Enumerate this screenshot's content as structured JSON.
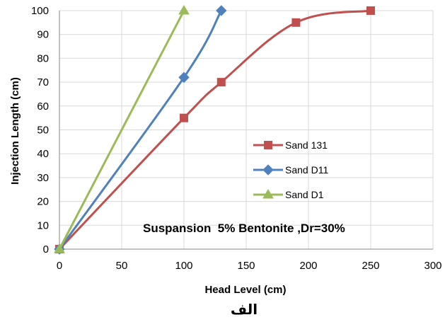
{
  "chart_data": {
    "type": "line",
    "title": "",
    "xlabel": "Head Level (cm)",
    "ylabel": "Injection Length (cm)",
    "xlim": [
      0,
      300
    ],
    "ylim": [
      0,
      100
    ],
    "x_ticks": [
      0,
      50,
      100,
      150,
      200,
      250,
      300
    ],
    "y_ticks": [
      0,
      10,
      20,
      30,
      40,
      50,
      60,
      70,
      80,
      90,
      100
    ],
    "grid": true,
    "legend_position": "center-right",
    "series": [
      {
        "name": "Sand 131",
        "color": "#c0504d",
        "marker": "square",
        "x": [
          0,
          100,
          130,
          190,
          250
        ],
        "y": [
          0,
          55,
          70,
          95,
          100
        ]
      },
      {
        "name": "Sand D11",
        "color": "#4f81bd",
        "marker": "diamond",
        "x": [
          0,
          100,
          130
        ],
        "y": [
          0,
          72,
          100
        ]
      },
      {
        "name": "Sand D1",
        "color": "#9bbb59",
        "marker": "triangle",
        "x": [
          0,
          100
        ],
        "y": [
          0,
          100
        ]
      }
    ],
    "annotation": "Suspansion  5% Bentonite ,Dr=30%",
    "caption": "الف"
  }
}
